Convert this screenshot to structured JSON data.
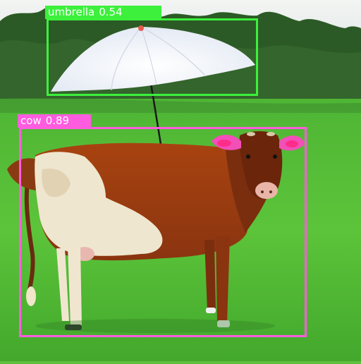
{
  "detections": [
    {
      "id": "umbrella",
      "label": "umbrella",
      "score": "0.54",
      "box_color": "#3cf03c",
      "label_text_color": "#ffffff"
    },
    {
      "id": "cow",
      "label": "cow",
      "score": "0.89",
      "box_color": "#ff5ce0",
      "label_text_color": "#ffffff"
    }
  ],
  "scene": {
    "sky_color": "#e8eef0",
    "tree_color": "#2f5a28",
    "grass_color": "#5cc13a",
    "cow_brown": "#b04a12",
    "cow_white": "#efe6cf",
    "umbrella_color": "#f4f6fb"
  }
}
